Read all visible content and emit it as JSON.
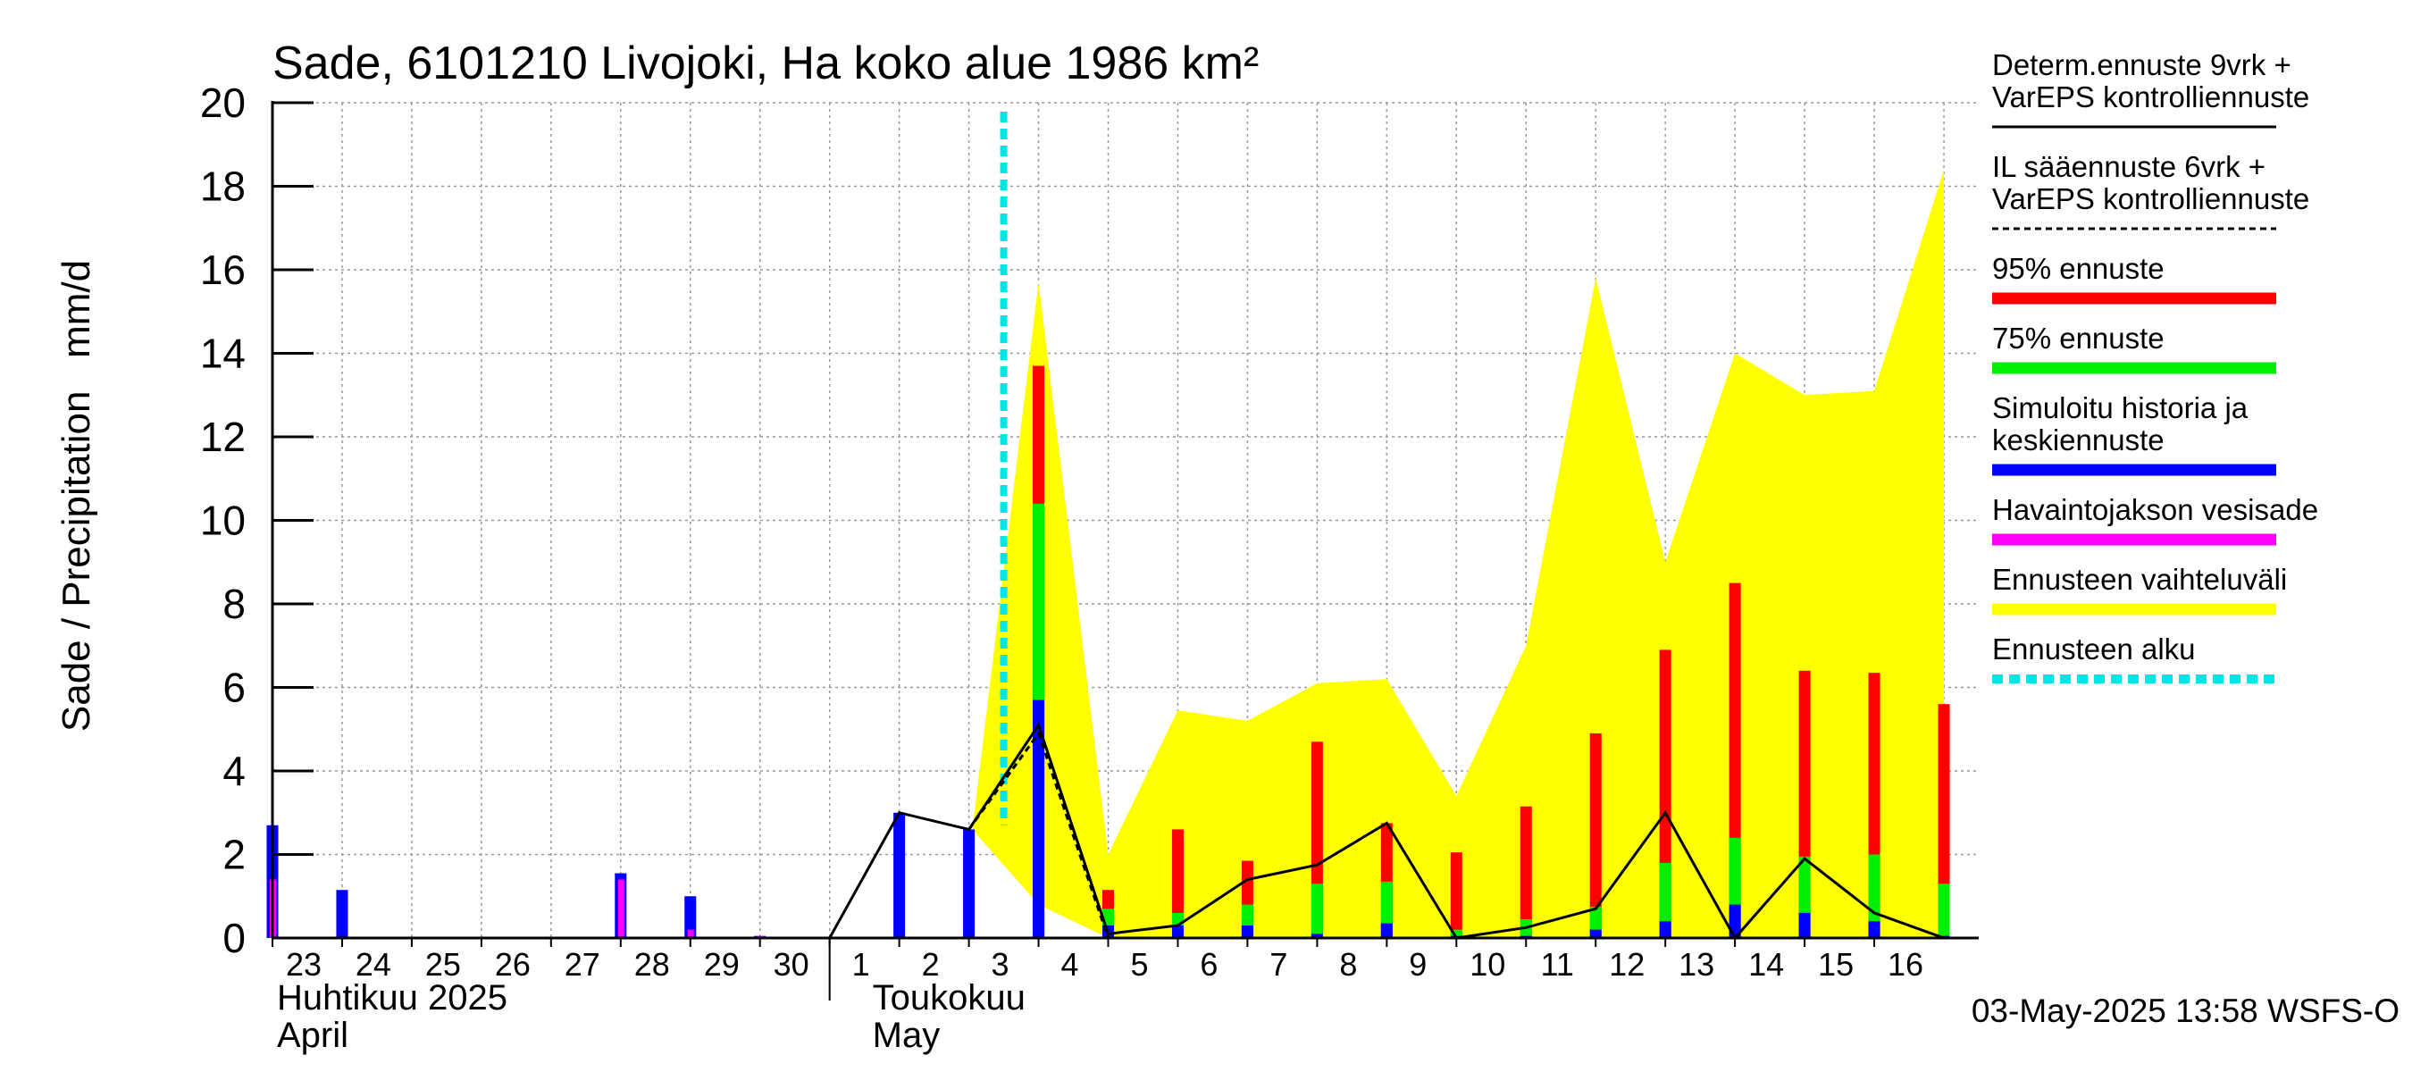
{
  "chart_data": {
    "type": "bar",
    "title": "Sade, 6101210 Livojoki, Ha koko alue 1986 km²",
    "ylabel": "Sade / Precipitation   mm/d",
    "ylim": [
      0,
      20
    ],
    "yticks": [
      0,
      2,
      4,
      6,
      8,
      10,
      12,
      14,
      16,
      18,
      20
    ],
    "grid": true,
    "x_day_labels": [
      "23",
      "24",
      "25",
      "26",
      "27",
      "28",
      "29",
      "30",
      "1",
      "2",
      "3",
      "4",
      "5",
      "6",
      "7",
      "8",
      "9",
      "10",
      "11",
      "12",
      "13",
      "14",
      "15",
      "16"
    ],
    "month_labels": [
      {
        "fi": "Huhtikuu  2025",
        "en": "April"
      },
      {
        "fi": "Toukokuu",
        "en": "May"
      }
    ],
    "forecast_start_day": 11,
    "timestamp": "03-May-2025 13:58 WSFS-O",
    "series": [
      {
        "name": "Havaintojakson vesisade",
        "color": "#ff00ff",
        "points": [
          [
            0,
            1.4
          ],
          [
            5,
            1.4
          ],
          [
            6,
            0.2
          ],
          [
            7,
            0.05
          ]
        ]
      },
      {
        "name": "Simuloitu historia ja keskiennuste",
        "color": "#0000ff",
        "points": [
          [
            0,
            2.7
          ],
          [
            1,
            1.15
          ],
          [
            5,
            1.55
          ],
          [
            6,
            1.0
          ],
          [
            7,
            0.05
          ],
          [
            9,
            3.0
          ],
          [
            10,
            2.6
          ],
          [
            11,
            5.7
          ],
          [
            12,
            0.3
          ],
          [
            13,
            0.3
          ],
          [
            14,
            0.3
          ],
          [
            15,
            0.1
          ],
          [
            16,
            0.35
          ],
          [
            17,
            0.05
          ],
          [
            18,
            0.05
          ],
          [
            19,
            0.2
          ],
          [
            20,
            0.4
          ],
          [
            21,
            0.8
          ],
          [
            22,
            0.6
          ],
          [
            23,
            0.4
          ],
          [
            24,
            0.05
          ]
        ]
      },
      {
        "name": "75% ennuste",
        "color": "#00ee00",
        "points": [
          [
            11,
            10.4
          ],
          [
            12,
            0.7
          ],
          [
            13,
            0.6
          ],
          [
            14,
            0.8
          ],
          [
            15,
            1.3
          ],
          [
            16,
            1.35
          ],
          [
            17,
            0.2
          ],
          [
            18,
            0.45
          ],
          [
            19,
            0.75
          ],
          [
            20,
            1.8
          ],
          [
            21,
            2.4
          ],
          [
            22,
            1.95
          ],
          [
            23,
            2.0
          ],
          [
            24,
            1.3
          ]
        ]
      },
      {
        "name": "95% ennuste",
        "color": "#ff0000",
        "points": [
          [
            11,
            13.7
          ],
          [
            12,
            1.15
          ],
          [
            13,
            2.6
          ],
          [
            14,
            1.85
          ],
          [
            15,
            4.7
          ],
          [
            16,
            2.75
          ],
          [
            17,
            2.05
          ],
          [
            18,
            3.15
          ],
          [
            19,
            4.9
          ],
          [
            20,
            6.9
          ],
          [
            21,
            8.5
          ],
          [
            22,
            6.4
          ],
          [
            23,
            6.35
          ],
          [
            24,
            5.6
          ]
        ]
      },
      {
        "name": "Ennusteen vaihteluväli",
        "color": "#ffff00",
        "upper": [
          [
            10.05,
            2.6
          ],
          [
            11,
            15.7
          ],
          [
            12,
            2.0
          ],
          [
            13,
            5.45
          ],
          [
            14,
            5.2
          ],
          [
            15,
            6.1
          ],
          [
            16,
            6.2
          ],
          [
            17,
            3.4
          ],
          [
            18,
            7.0
          ],
          [
            19,
            15.8
          ],
          [
            20,
            9.0
          ],
          [
            21,
            14.0
          ],
          [
            22,
            13.0
          ],
          [
            23,
            13.1
          ],
          [
            24,
            18.4
          ]
        ],
        "lower": [
          [
            10.05,
            2.6
          ],
          [
            11,
            0.8
          ],
          [
            12,
            0
          ],
          [
            24,
            0
          ]
        ]
      },
      {
        "name": "Determ.ennuste 9vrk + VarEPS kontrolliennuste",
        "color": "#000000",
        "points": [
          [
            8,
            0
          ],
          [
            9,
            3.0
          ],
          [
            10,
            2.6
          ],
          [
            11,
            5.1
          ],
          [
            12,
            0.1
          ],
          [
            13,
            0.3
          ],
          [
            14,
            1.4
          ],
          [
            15,
            1.75
          ],
          [
            16,
            2.75
          ],
          [
            17,
            0
          ],
          [
            18,
            0.25
          ],
          [
            19,
            0.7
          ],
          [
            20,
            3.0
          ],
          [
            21,
            0
          ],
          [
            22,
            1.9
          ],
          [
            23,
            0.6
          ],
          [
            24,
            0
          ]
        ]
      },
      {
        "name": "IL sääennuste 6vrk + VarEPS kontrolliennuste",
        "color": "#000000",
        "points": [
          [
            10,
            2.6
          ],
          [
            11,
            4.9
          ],
          [
            12,
            0
          ]
        ]
      }
    ],
    "legend": [
      {
        "text": [
          "Determ.ennuste 9vrk +",
          "VarEPS kontrolliennuste"
        ],
        "style": "solid",
        "color": "#000000"
      },
      {
        "text": [
          "IL sääennuste 6vrk  +",
          "  VarEPS kontrolliennuste"
        ],
        "style": "dashed",
        "color": "#000000"
      },
      {
        "text": [
          "95% ennuste"
        ],
        "style": "bar",
        "color": "#ff0000"
      },
      {
        "text": [
          "75% ennuste"
        ],
        "style": "bar",
        "color": "#00ee00"
      },
      {
        "text": [
          "Simuloitu historia ja",
          "keskiennuste"
        ],
        "style": "bar",
        "color": "#0000ff"
      },
      {
        "text": [
          "Havaintojakson vesisade"
        ],
        "style": "bar",
        "color": "#ff00ff"
      },
      {
        "text": [
          "Ennusteen vaihteluväli"
        ],
        "style": "bar",
        "color": "#ffff00"
      },
      {
        "text": [
          "Ennusteen alku"
        ],
        "style": "dotted",
        "color": "#00e5e5"
      }
    ]
  }
}
